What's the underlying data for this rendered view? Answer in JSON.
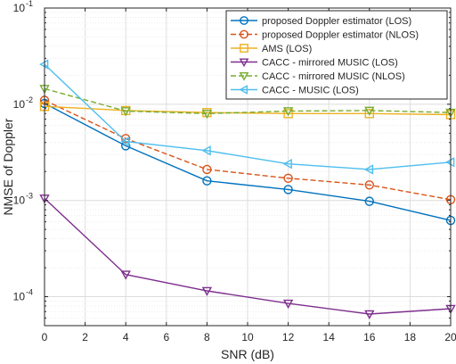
{
  "chart_data": {
    "type": "line",
    "xlabel": "SNR (dB)",
    "ylabel": "NMSE of Doppler",
    "xlim": [
      0,
      20
    ],
    "ylim": [
      5e-05,
      0.1
    ],
    "yscale": "log",
    "grid": true,
    "legend_position": "top-right",
    "x_ticks": [
      0,
      2,
      4,
      6,
      8,
      10,
      12,
      14,
      16,
      18,
      20
    ],
    "x_tick_labels": [
      "0",
      "2",
      "4",
      "6",
      "8",
      "10",
      "12",
      "14",
      "16",
      "18",
      "20"
    ],
    "y_ticks": [
      0.0001,
      0.001,
      0.01,
      0.1
    ],
    "y_tick_labels": [
      {
        "base": "10",
        "exp": "-4"
      },
      {
        "base": "10",
        "exp": "-3"
      },
      {
        "base": "10",
        "exp": "-2"
      },
      {
        "base": "10",
        "exp": "-1"
      }
    ],
    "series": [
      {
        "name": "proposed Doppler estimator (LOS)",
        "color": "#0072BD",
        "dash": "solid",
        "marker": "circle",
        "x": [
          0,
          4,
          8,
          12,
          16,
          20
        ],
        "y": [
          0.0102,
          0.0037,
          0.0016,
          0.0013,
          0.00098,
          0.00062
        ]
      },
      {
        "name": "proposed Doppler estimator (NLOS)",
        "color": "#D95319",
        "dash": "dashed",
        "marker": "circle",
        "x": [
          0,
          4,
          8,
          12,
          16,
          20
        ],
        "y": [
          0.011,
          0.0044,
          0.0021,
          0.0017,
          0.00145,
          0.00102
        ]
      },
      {
        "name": "AMS (LOS)",
        "color": "#EDB120",
        "dash": "solid",
        "marker": "square",
        "x": [
          0,
          4,
          8,
          12,
          16,
          20
        ],
        "y": [
          0.0095,
          0.0086,
          0.0082,
          0.008,
          0.008,
          0.0078
        ]
      },
      {
        "name": "CACC - mirrored MUSIC (LOS)",
        "color": "#7E2F8E",
        "dash": "solid",
        "marker": "triangle-down",
        "x": [
          0,
          4,
          8,
          12,
          16,
          20
        ],
        "y": [
          0.00105,
          0.00017,
          0.000115,
          8.5e-05,
          6.6e-05,
          7.5e-05
        ]
      },
      {
        "name": "CACC - mirrored MUSIC (NLOS)",
        "color": "#77AC30",
        "dash": "dashed",
        "marker": "triangle-down",
        "x": [
          0,
          4,
          8,
          12,
          16,
          20
        ],
        "y": [
          0.0145,
          0.0085,
          0.008,
          0.0085,
          0.0086,
          0.0082
        ]
      },
      {
        "name": "CACC - MUSIC (LOS)",
        "color": "#4DBEEE",
        "dash": "solid",
        "marker": "triangle-left",
        "x": [
          0,
          4,
          8,
          12,
          16,
          20
        ],
        "y": [
          0.026,
          0.0041,
          0.0033,
          0.0024,
          0.0021,
          0.0025
        ]
      }
    ]
  }
}
